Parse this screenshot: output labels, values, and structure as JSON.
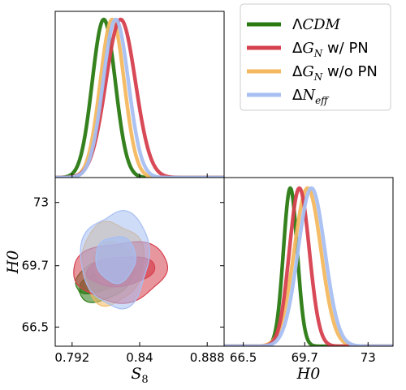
{
  "chart_data": {
    "type": "corner-plot",
    "series": [
      {
        "name": "ΛCDM",
        "color": "#2a7a12",
        "s8_mean": 0.8145,
        "s8_sd": 0.0082,
        "h0_mean": 68.95,
        "h0_sd": 0.36
      },
      {
        "name": "ΔG_N w/ PN",
        "color": "#d6404e",
        "s8_mean": 0.8265,
        "s8_sd": 0.0105,
        "h0_mean": 69.42,
        "h0_sd": 0.52
      },
      {
        "name": "ΔG_N w/o PN",
        "color": "#f4b860",
        "s8_mean": 0.8205,
        "s8_sd": 0.0085,
        "h0_mean": 69.85,
        "h0_sd": 0.7
      },
      {
        "name": "ΔN_eff",
        "color": "#a7bff2",
        "s8_mean": 0.823,
        "s8_sd": 0.009,
        "h0_mean": 70.05,
        "h0_sd": 0.7
      }
    ],
    "x_axis": {
      "label": "S_8",
      "range": [
        0.78,
        0.9
      ],
      "ticks": [
        0.792,
        0.84,
        0.888
      ],
      "tick_labels": [
        "0.792",
        "0.84",
        "0.888"
      ]
    },
    "y_axis": {
      "label": "H0",
      "range": [
        65.5,
        74.3
      ],
      "ticks": [
        66.5,
        69.7,
        73
      ],
      "tick_labels": [
        "66.5",
        "69.7",
        "73"
      ]
    },
    "h0_axis": {
      "label": "H0",
      "range": [
        65.5,
        74.3
      ],
      "ticks": [
        66.5,
        69.7,
        73
      ],
      "tick_labels": [
        "66.5",
        "69.7",
        "73"
      ]
    },
    "legend": {
      "placement": "top-right",
      "entries": [
        {
          "prefix": "Λ",
          "main": "CDM",
          "sub": "",
          "suffix": ""
        },
        {
          "prefix": "Δ",
          "main": "G",
          "sub": "N",
          "suffix": " w/ PN"
        },
        {
          "prefix": "Δ",
          "main": "G",
          "sub": "N",
          "suffix": " w/o PN"
        },
        {
          "prefix": "Δ",
          "main": "N",
          "sub": "eff",
          "suffix": ""
        }
      ]
    }
  }
}
